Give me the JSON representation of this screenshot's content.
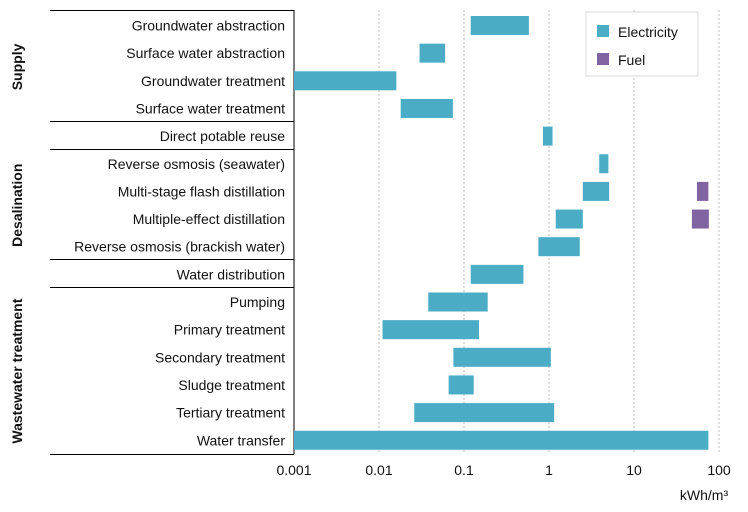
{
  "chart_data": {
    "type": "bar",
    "orientation": "horizontal-range",
    "x_scale": "log",
    "xlim": [
      0.001,
      100
    ],
    "x_ticks": [
      "0.001",
      "0.01",
      "0.1",
      "1",
      "10",
      "100"
    ],
    "x_unit": "kWh/m³",
    "grid": "vertical dotted",
    "legend_position": "top-right",
    "colors": {
      "Electricity": "#4bacc6",
      "Fuel": "#8064a2"
    },
    "groups": [
      {
        "name": "Supply",
        "categories": [
          "Groundwater abstraction",
          "Surface water abstraction",
          "Groundwater treatment",
          "Surface water treatment"
        ]
      },
      {
        "name": "",
        "categories": [
          "Direct potable reuse"
        ]
      },
      {
        "name": "Desalination",
        "categories": [
          "Reverse osmosis (seawater)",
          "Multi-stage flash distillation",
          "Multiple-effect distillation",
          "Reverse osmosis (brackish water)"
        ]
      },
      {
        "name": "",
        "categories": [
          "Water distribution"
        ]
      },
      {
        "name": "Wastewater treatment",
        "categories": [
          "Pumping",
          "Primary treatment",
          "Secondary treatment",
          "Sludge treatment",
          "Tertiary treatment",
          "Water transfer"
        ]
      }
    ],
    "categories": [
      "Groundwater abstraction",
      "Surface water abstraction",
      "Groundwater treatment",
      "Surface water treatment",
      "Direct potable reuse",
      "Reverse osmosis (seawater)",
      "Multi-stage flash distillation",
      "Multiple-effect distillation",
      "Reverse osmosis (brackish water)",
      "Water distribution",
      "Pumping",
      "Primary treatment",
      "Secondary treatment",
      "Sludge treatment",
      "Tertiary treatment",
      "Water transfer"
    ],
    "series": [
      {
        "name": "Electricity",
        "ranges": [
          [
            0.12,
            0.58
          ],
          [
            0.03,
            0.06
          ],
          [
            0.001,
            0.016
          ],
          [
            0.018,
            0.074
          ],
          [
            0.85,
            1.1
          ],
          [
            3.9,
            5.0
          ],
          [
            2.5,
            5.1
          ],
          [
            1.2,
            2.5
          ],
          [
            0.75,
            2.3
          ],
          [
            0.12,
            0.5
          ],
          [
            0.038,
            0.19
          ],
          [
            0.011,
            0.15
          ],
          [
            0.075,
            1.05
          ],
          [
            0.066,
            0.13
          ],
          [
            0.026,
            1.15
          ],
          [
            0.001,
            75
          ]
        ]
      },
      {
        "name": "Fuel",
        "ranges": [
          null,
          null,
          null,
          null,
          null,
          null,
          [
            55,
            75
          ],
          [
            48,
            76
          ],
          null,
          null,
          null,
          null,
          null,
          null,
          null,
          null
        ]
      }
    ]
  }
}
